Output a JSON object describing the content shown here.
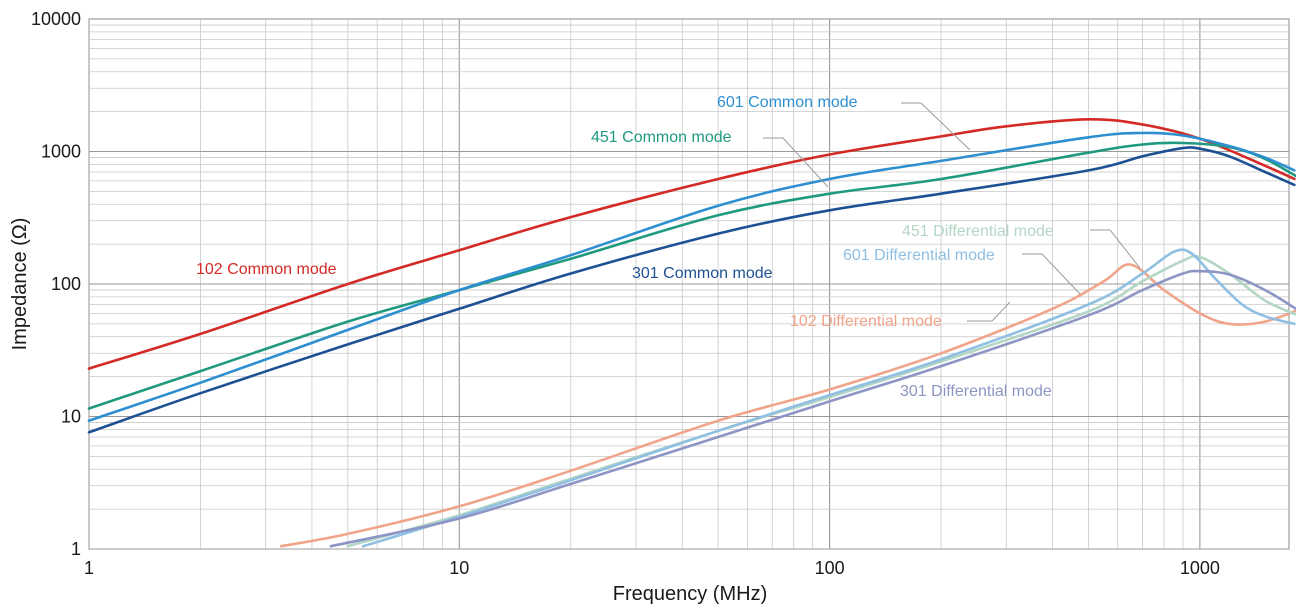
{
  "chart_data": {
    "type": "line",
    "xlabel": "Frequency (MHz)",
    "ylabel": "Impedance (Ω)",
    "x_scale": "log",
    "y_scale": "log",
    "xlim": [
      1,
      2000
    ],
    "ylim": [
      1,
      10000
    ],
    "grid": true,
    "x_ticks": [
      "1",
      "10",
      "100",
      "1000"
    ],
    "y_ticks": [
      "1",
      "10",
      "100",
      "1000",
      "10000"
    ],
    "series": [
      {
        "name": "102 Common mode",
        "color": "#d42a26",
        "x": [
          1,
          2,
          5,
          10,
          20,
          50,
          100,
          200,
          300,
          500,
          700,
          1000,
          1500,
          1800
        ],
        "y": [
          23,
          42,
          100,
          180,
          320,
          620,
          950,
          1300,
          1550,
          1750,
          1600,
          1250,
          780,
          620
        ]
      },
      {
        "name": "451 Common mode",
        "color": "#1f9a80",
        "x": [
          1,
          2,
          5,
          10,
          20,
          50,
          100,
          200,
          500,
          700,
          900,
          1200,
          1500,
          1950
        ],
        "y": [
          11.5,
          22,
          52,
          90,
          155,
          330,
          480,
          620,
          980,
          1130,
          1160,
          1080,
          880,
          580
        ]
      },
      {
        "name": "601 Common mode",
        "color": "#2d8fd0",
        "x": [
          1,
          2,
          5,
          10,
          20,
          50,
          100,
          200,
          500,
          700,
          900,
          1200,
          1500,
          1800
        ],
        "y": [
          9.3,
          18,
          45,
          90,
          165,
          390,
          620,
          850,
          1280,
          1380,
          1320,
          1100,
          900,
          720
        ]
      },
      {
        "name": "301 Common mode",
        "color": "#1d5193",
        "x": [
          1,
          2,
          5,
          10,
          20,
          50,
          100,
          200,
          500,
          700,
          900,
          1000,
          1200,
          1500,
          1800
        ],
        "y": [
          7.6,
          15,
          35,
          65,
          120,
          240,
          360,
          480,
          720,
          920,
          1060,
          1050,
          920,
          700,
          560
        ]
      },
      {
        "name": "102 Differential mode",
        "color": "#f0a489",
        "x": [
          3.3,
          5,
          10,
          20,
          50,
          100,
          200,
          400,
          550,
          650,
          800,
          1000,
          1200,
          1500,
          1900
        ],
        "y": [
          1.05,
          1.3,
          2.1,
          3.9,
          9.3,
          16,
          30,
          65,
          105,
          140,
          90,
          60,
          50,
          52,
          66
        ]
      },
      {
        "name": "451  Differential mode",
        "color": "#b4d6c4",
        "x": [
          5,
          10,
          20,
          50,
          100,
          200,
          500,
          700,
          900,
          1000,
          1200,
          1500,
          1900
        ],
        "y": [
          1.05,
          1.8,
          3.4,
          7.8,
          14,
          26,
          62,
          105,
          150,
          160,
          120,
          75,
          56
        ]
      },
      {
        "name": "601 Differential mode",
        "color": "#8fbfe2",
        "x": [
          5.5,
          10,
          20,
          50,
          100,
          200,
          500,
          700,
          850,
          950,
          1100,
          1300,
          1500,
          1800
        ],
        "y": [
          1.05,
          1.75,
          3.3,
          7.8,
          14.5,
          27,
          70,
          120,
          175,
          170,
          110,
          70,
          57,
          50
        ]
      },
      {
        "name": "301 Differential mode",
        "color": "#8d95c5",
        "x": [
          4.5,
          10,
          20,
          50,
          100,
          200,
          500,
          700,
          900,
          1000,
          1200,
          1500,
          1900
        ],
        "y": [
          1.05,
          1.7,
          3.1,
          7,
          13,
          24,
          58,
          90,
          120,
          125,
          118,
          90,
          60
        ]
      }
    ]
  }
}
